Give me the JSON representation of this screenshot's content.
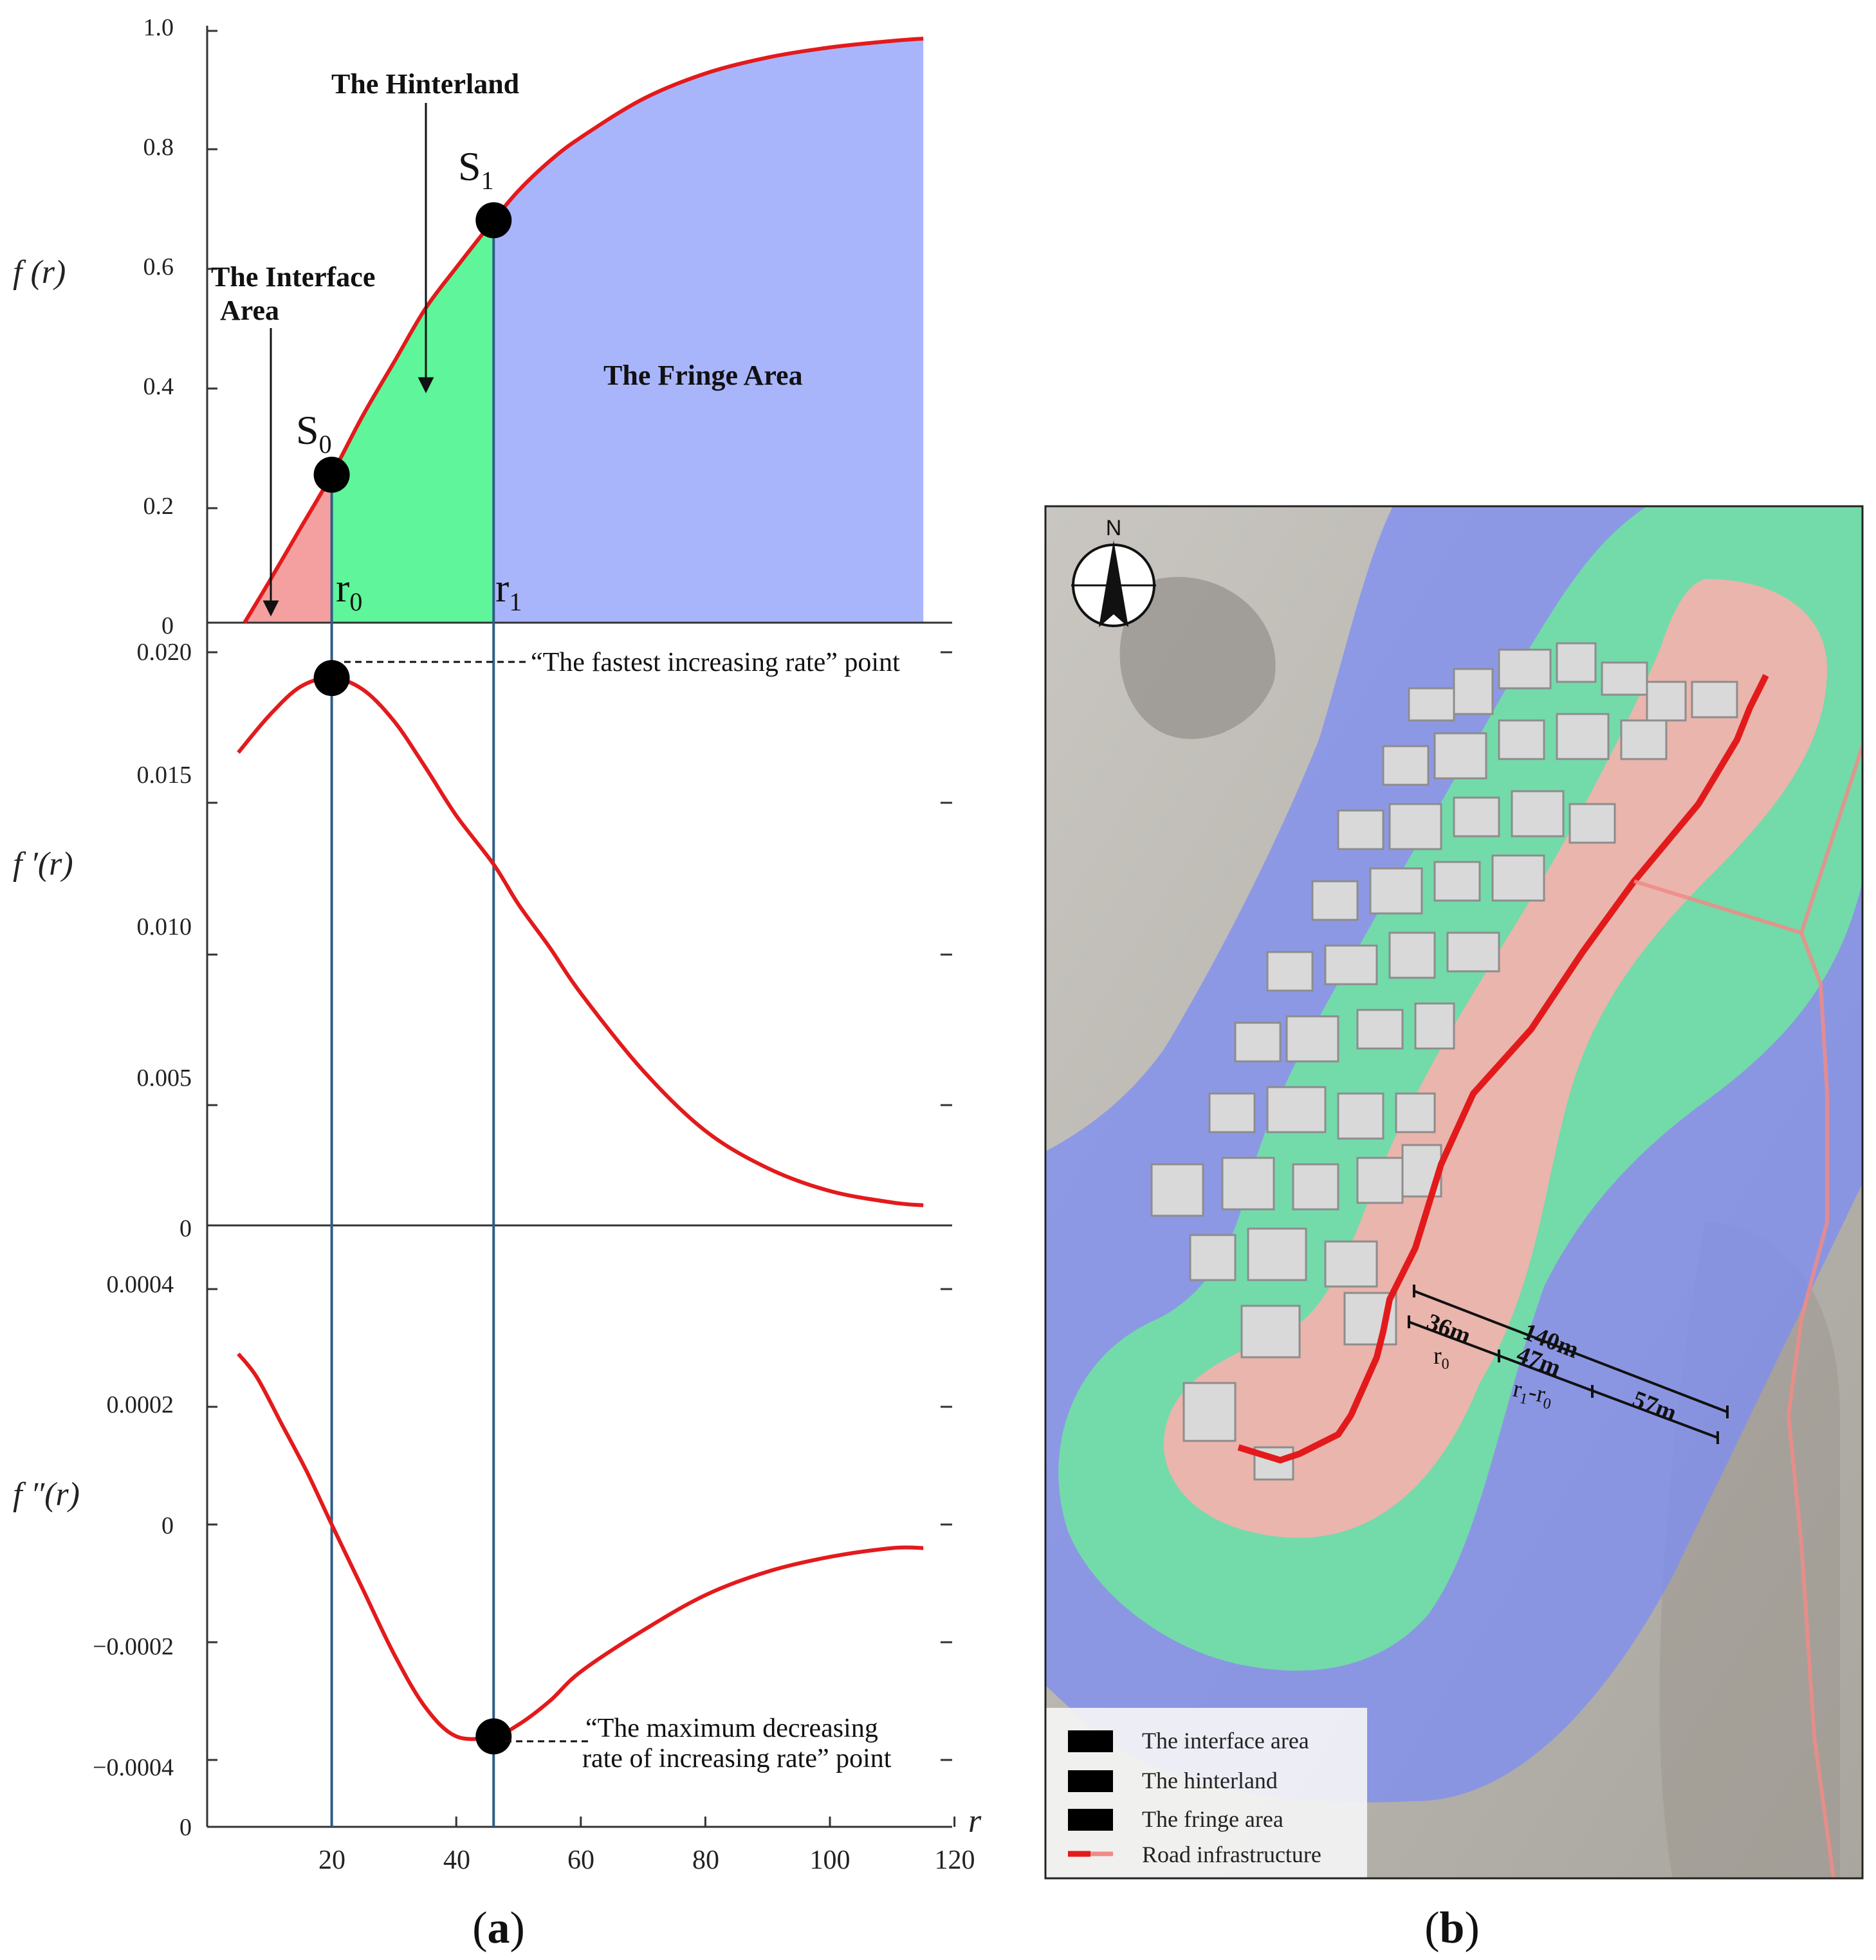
{
  "panel_a": {
    "caption_open": "(",
    "caption_letter": "a",
    "caption_close": ")",
    "top": {
      "ylabel": "f (r)",
      "yticks": [
        "1.0",
        "0.8",
        "0.6",
        "0.4",
        "0.2",
        "0"
      ],
      "region_labels": {
        "interface_line1": "The Interface",
        "interface_line2": "Area",
        "hinterland": "The Hinterland",
        "fringe": "The Fringe Area"
      },
      "point_labels": {
        "s0": "S",
        "s0_sub": "0",
        "s1": "S",
        "s1_sub": "1",
        "r0": "r",
        "r0_sub": "0",
        "r1": "r",
        "r1_sub": "1"
      }
    },
    "middle": {
      "ylabel": "f ′(r)",
      "yticks": [
        "0.020",
        "0.015",
        "0.010",
        "0.005",
        "0"
      ],
      "annotation": "“The fastest increasing rate” point"
    },
    "bottom": {
      "ylabel": "f ″(r)",
      "yticks": [
        "0.0004",
        "0.0002",
        "0",
        "−0.0002",
        "−0.0004",
        "0"
      ],
      "annotation_line1": "“The maximum decreasing",
      "annotation_line2": "rate of increasing rate” point"
    },
    "xaxis": {
      "label": "r",
      "ticks": [
        "20",
        "40",
        "60",
        "80",
        "100",
        "120"
      ]
    },
    "colors": {
      "curve": "#e31a1c",
      "interface": "#f4a0a0",
      "hinterland": "#5ff59a",
      "fringe": "#a9b5fb",
      "vline": "#2e5d87"
    }
  },
  "panel_b": {
    "caption_open": "(",
    "caption_letter": "b",
    "caption_close": ")",
    "north": "N",
    "distances": {
      "d140": "140m",
      "d36": "36m",
      "d47": "47m",
      "d57": "57m",
      "r0": "r",
      "r0_sub": "0",
      "r1r0_a": "r",
      "r1r0_a_sub": "1",
      "r1r0_dash": "-r",
      "r1r0_b_sub": "0"
    },
    "legend": [
      {
        "label": "The interface area",
        "color": "#f7b4b4"
      },
      {
        "label": "The hinterland",
        "color": "#7ee3a9"
      },
      {
        "label": "The fringe area",
        "color": "#9ba6ee"
      },
      {
        "label": "Road infrastructure",
        "color": "#e31a1c"
      }
    ]
  },
  "chart_data": [
    {
      "type": "area",
      "title": "",
      "xlabel": "",
      "ylabel": "f (r)",
      "xlim": [
        0,
        120
      ],
      "ylim": [
        0,
        1.0
      ],
      "x": [
        6,
        10,
        15,
        20,
        25,
        30,
        35,
        40,
        46,
        50,
        55,
        60,
        70,
        80,
        90,
        100,
        110,
        115
      ],
      "series": [
        {
          "values": [
            0.0,
            0.07,
            0.16,
            0.25,
            0.35,
            0.44,
            0.53,
            0.6,
            0.68,
            0.73,
            0.78,
            0.82,
            0.885,
            0.928,
            0.955,
            0.972,
            0.983,
            0.987
          ]
        }
      ],
      "regions": [
        {
          "name": "The Interface Area",
          "from": 6,
          "to": 20
        },
        {
          "name": "The Hinterland",
          "from": 20,
          "to": 46
        },
        {
          "name": "The Fringe Area",
          "from": 46,
          "to": 115
        }
      ],
      "points": [
        {
          "label": "S0",
          "x": 20,
          "y": 0.25
        },
        {
          "label": "S1",
          "x": 46,
          "y": 0.68
        }
      ]
    },
    {
      "type": "line",
      "xlabel": "",
      "ylabel": "f ′(r)",
      "xlim": [
        0,
        120
      ],
      "ylim": [
        0,
        0.02
      ],
      "x": [
        5,
        10,
        15,
        20,
        25,
        30,
        35,
        40,
        46,
        50,
        55,
        60,
        70,
        80,
        90,
        100,
        110,
        115
      ],
      "series": [
        {
          "values": [
            0.0165,
            0.0178,
            0.0188,
            0.0191,
            0.0187,
            0.0176,
            0.016,
            0.0143,
            0.0126,
            0.0112,
            0.0097,
            0.0081,
            0.0054,
            0.0033,
            0.002,
            0.0012,
            0.0008,
            0.0007
          ]
        }
      ],
      "points": [
        {
          "label": "The fastest increasing rate",
          "x": 20,
          "y": 0.0191
        }
      ]
    },
    {
      "type": "line",
      "xlabel": "r",
      "ylabel": "f ″(r)",
      "xlim": [
        0,
        120
      ],
      "ylim": [
        -0.0005,
        0.0005
      ],
      "x": [
        5,
        8,
        12,
        16,
        20,
        25,
        30,
        35,
        40,
        46,
        50,
        55,
        60,
        70,
        80,
        90,
        100,
        110,
        115
      ],
      "series": [
        {
          "values": [
            0.00029,
            0.00025,
            0.00017,
            9e-05,
            0.0,
            -0.00011,
            -0.00022,
            -0.00031,
            -0.00036,
            -0.00036,
            -0.00034,
            -0.0003,
            -0.00025,
            -0.00018,
            -0.00012,
            -8e-05,
            -5.5e-05,
            -4e-05,
            -4e-05
          ]
        }
      ],
      "points": [
        {
          "label": "The maximum decreasing rate of increasing rate",
          "x": 46,
          "y": -0.00036
        }
      ]
    }
  ]
}
